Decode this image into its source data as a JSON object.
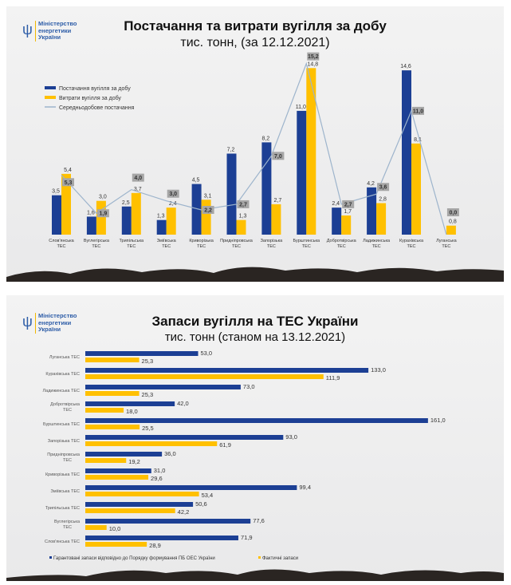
{
  "logo": {
    "text": "Міністерство\nенергетики\nУкраїни"
  },
  "chart_data": [
    {
      "type": "bar",
      "title": "Постачання та витрати вугілля за добу",
      "subtitle": "тис. тонн, (за 12.12.2021)",
      "categories": [
        "Слов'янська ТЕС",
        "Вуглегірська ТЕС",
        "Трипільська ТЕС",
        "Зміївська ТЕС",
        "Криворізька ТЕС",
        "Придніпровська ТЕС",
        "Запорізька ТЕС",
        "Бурштинська ТЕС",
        "Добротвірська ТЕС",
        "Ладижинська ТЕС",
        "Курахівська ТЕС",
        "Луганська ТЕС"
      ],
      "series": [
        {
          "name": "Постачання вугілля за добу",
          "type": "bar",
          "color": "#1c3f94",
          "values": [
            3.5,
            1.6,
            2.5,
            1.3,
            4.5,
            7.2,
            8.2,
            11.0,
            2.4,
            4.2,
            14.6,
            null
          ],
          "labels": [
            "3,5",
            "1,6",
            "2,5",
            "1,3",
            "4,5",
            "7,2",
            "8,2",
            "11,0",
            "2,4",
            "4,2",
            "14,6",
            ""
          ]
        },
        {
          "name": "Витрати вугілля за добу",
          "type": "bar",
          "color": "#ffc000",
          "values": [
            5.4,
            3.0,
            3.7,
            2.4,
            3.1,
            1.3,
            2.7,
            14.8,
            1.7,
            2.8,
            8.1,
            0.8
          ],
          "labels": [
            "5,4",
            "3,0",
            "3,7",
            "2,4",
            "3,1",
            "1,3",
            "2,7",
            "14,8",
            "1,7",
            "2,8",
            "8,1",
            "0,8"
          ]
        },
        {
          "name": "Середньодобове постачання",
          "type": "line",
          "color": "#9db4cc",
          "values": [
            5.3,
            1.9,
            4.0,
            3.0,
            2.2,
            2.7,
            7.0,
            15.2,
            2.7,
            3.6,
            11.0,
            0.0
          ],
          "labels": [
            "5,3",
            "1,9",
            "4,0",
            "3,0",
            "2,2",
            "2,7",
            "7,0",
            "15,2",
            "2,7",
            "3,6",
            "11,0",
            "0,0"
          ]
        }
      ],
      "legend": "top-left",
      "grid": false
    },
    {
      "type": "bar",
      "orientation": "horizontal",
      "title": "Запаси вугілля на ТЕС України",
      "subtitle": "тис. тонн (станом на 13.12.2021)",
      "categories": [
        "Луганська ТЕС",
        "Курахівська ТЕС",
        "Ладижинська ТЕС",
        "Добротвірська ТЕС",
        "Бурштинська ТЕС",
        "Запорізька ТЕС",
        "Придніпровська ТЕС",
        "Криворізька ТЕС",
        "Зміївська ТЕС",
        "Трипільська ТЕС",
        "Вуглегірська ТЕС",
        "Слов'янська ТЕС"
      ],
      "series": [
        {
          "name": "Гарантовані запаси відповідно до Порядку формування ПБ ОЕС України",
          "color": "#1c3f94",
          "values": [
            53.0,
            133.0,
            73.0,
            42.0,
            161.0,
            93.0,
            36.0,
            31.0,
            99.4,
            50.6,
            77.6,
            71.9
          ],
          "labels": [
            "53,0",
            "133,0",
            "73,0",
            "42,0",
            "161,0",
            "93,0",
            "36,0",
            "31,0",
            "99,4",
            "50,6",
            "77,6",
            "71,9"
          ]
        },
        {
          "name": "Фактичні запаси",
          "color": "#ffc000",
          "values": [
            25.3,
            111.9,
            25.3,
            18.0,
            25.5,
            61.9,
            19.2,
            29.6,
            53.4,
            42.2,
            10.0,
            28.9
          ],
          "labels": [
            "25,3",
            "111,9",
            "25,3",
            "18,0",
            "25,5",
            "61,9",
            "19,2",
            "29,6",
            "53,4",
            "42,2",
            "10,0",
            "28,9"
          ]
        }
      ],
      "legend": "bottom",
      "grid": false
    }
  ]
}
